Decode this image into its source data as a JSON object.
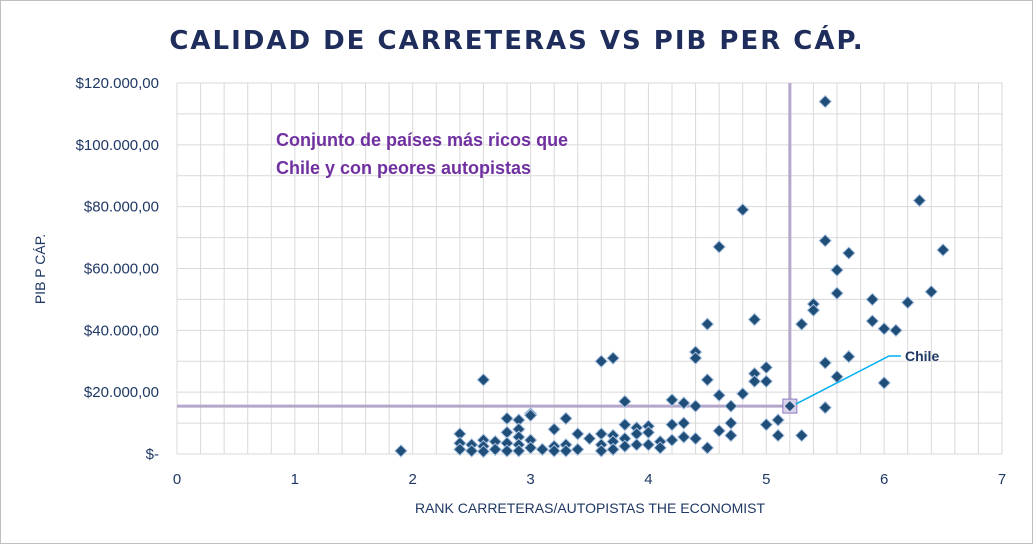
{
  "chart_data": {
    "type": "scatter",
    "title": "CALIDAD  DE CARRETERAS  VS PIB PER CÁP.",
    "xlabel": "RANK CARRETERAS/AUTOPISTAS THE ECONOMIST",
    "ylabel": "PIB P CÁP.",
    "xlim": [
      0,
      7
    ],
    "ylim": [
      0,
      120000
    ],
    "x_ticks": [
      "0",
      "1",
      "2",
      "3",
      "4",
      "5",
      "6",
      "7"
    ],
    "x_tick_values": [
      0,
      1,
      2,
      3,
      4,
      5,
      6,
      7
    ],
    "y_ticks": [
      "$-",
      "$20.000,00",
      "$40.000,00",
      "$60.000,00",
      "$80.000,00",
      "$100.000,00",
      "$120.000,00"
    ],
    "y_tick_values": [
      0,
      20000,
      40000,
      60000,
      80000,
      100000,
      120000
    ],
    "grid": true,
    "series": [
      {
        "marker_color": "#1f4e79",
        "points": [
          [
            1.9,
            1000
          ],
          [
            2.4,
            6500
          ],
          [
            2.4,
            3500
          ],
          [
            2.4,
            1500
          ],
          [
            2.5,
            3000
          ],
          [
            2.5,
            1000
          ],
          [
            2.6,
            4500
          ],
          [
            2.6,
            2500
          ],
          [
            2.6,
            800
          ],
          [
            2.6,
            24000
          ],
          [
            2.7,
            4000
          ],
          [
            2.7,
            1500
          ],
          [
            2.8,
            11500
          ],
          [
            2.8,
            7000
          ],
          [
            2.8,
            3500
          ],
          [
            2.8,
            1000
          ],
          [
            2.9,
            11000
          ],
          [
            2.9,
            8000
          ],
          [
            2.9,
            5500
          ],
          [
            2.9,
            3000
          ],
          [
            2.9,
            1000
          ],
          [
            3.0,
            13000
          ],
          [
            3.0,
            12500
          ],
          [
            3.0,
            4500
          ],
          [
            3.0,
            2000
          ],
          [
            3.1,
            1500
          ],
          [
            3.2,
            8000
          ],
          [
            3.2,
            2500
          ],
          [
            3.2,
            1000
          ],
          [
            3.3,
            11500
          ],
          [
            3.3,
            3000
          ],
          [
            3.3,
            1000
          ],
          [
            3.4,
            6500
          ],
          [
            3.4,
            1500
          ],
          [
            3.5,
            5000
          ],
          [
            3.6,
            30000
          ],
          [
            3.6,
            6500
          ],
          [
            3.6,
            3000
          ],
          [
            3.6,
            1000
          ],
          [
            3.7,
            31000
          ],
          [
            3.7,
            6000
          ],
          [
            3.7,
            4000
          ],
          [
            3.7,
            1500
          ],
          [
            3.8,
            17000
          ],
          [
            3.8,
            9500
          ],
          [
            3.8,
            5000
          ],
          [
            3.8,
            2500
          ],
          [
            3.9,
            8500
          ],
          [
            3.9,
            6500
          ],
          [
            3.9,
            3000
          ],
          [
            4.0,
            9000
          ],
          [
            4.0,
            7000
          ],
          [
            4.0,
            3000
          ],
          [
            4.1,
            4000
          ],
          [
            4.1,
            2000
          ],
          [
            4.2,
            17500
          ],
          [
            4.2,
            9500
          ],
          [
            4.2,
            4500
          ],
          [
            4.3,
            16500
          ],
          [
            4.3,
            10000
          ],
          [
            4.3,
            5500
          ],
          [
            4.4,
            33000
          ],
          [
            4.4,
            31000
          ],
          [
            4.4,
            15500
          ],
          [
            4.4,
            5000
          ],
          [
            4.5,
            42000
          ],
          [
            4.5,
            24000
          ],
          [
            4.5,
            2000
          ],
          [
            4.6,
            67000
          ],
          [
            4.6,
            19000
          ],
          [
            4.6,
            7500
          ],
          [
            4.7,
            15500
          ],
          [
            4.7,
            10000
          ],
          [
            4.7,
            6000
          ],
          [
            4.8,
            79000
          ],
          [
            4.8,
            19500
          ],
          [
            4.9,
            43500
          ],
          [
            4.9,
            26000
          ],
          [
            4.9,
            23500
          ],
          [
            5.0,
            28000
          ],
          [
            5.0,
            23500
          ],
          [
            5.0,
            9500
          ],
          [
            5.1,
            11000
          ],
          [
            5.1,
            6000
          ],
          [
            5.3,
            42000
          ],
          [
            5.3,
            6000
          ],
          [
            5.4,
            48500
          ],
          [
            5.4,
            46500
          ],
          [
            5.5,
            114000
          ],
          [
            5.5,
            69000
          ],
          [
            5.5,
            29500
          ],
          [
            5.5,
            15000
          ],
          [
            5.6,
            59500
          ],
          [
            5.6,
            52000
          ],
          [
            5.6,
            25000
          ],
          [
            5.7,
            65000
          ],
          [
            5.7,
            31500
          ],
          [
            5.9,
            50000
          ],
          [
            5.9,
            43000
          ],
          [
            6.0,
            40500
          ],
          [
            6.0,
            23000
          ],
          [
            6.1,
            40000
          ],
          [
            6.2,
            49000
          ],
          [
            6.3,
            82000
          ],
          [
            6.4,
            52500
          ],
          [
            6.5,
            66000
          ]
        ]
      }
    ],
    "highlight": {
      "label": "Chile",
      "x": 5.2,
      "y": 15500
    },
    "annotation": {
      "lines": [
        "Conjunto de países más ricos que",
        "Chile y con peores autopistas"
      ]
    },
    "reference_lines_color": "#b4a7c9",
    "annotation_color": "#7030a0",
    "callout_color": "#00b0f0"
  }
}
